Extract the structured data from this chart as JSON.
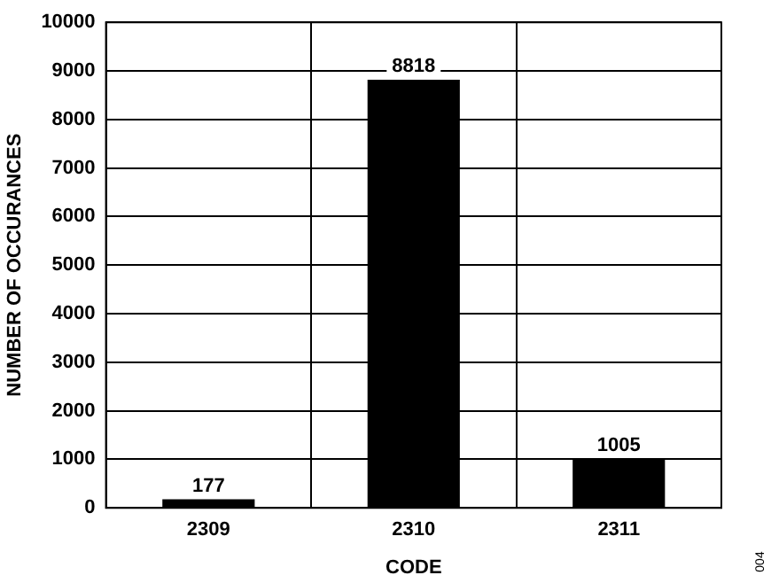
{
  "chart_data": {
    "type": "bar",
    "xlabel": "CODE",
    "ylabel": "NUMBER OF OCCURANCES",
    "categories": [
      "2309",
      "2310",
      "2311"
    ],
    "values": [
      177,
      8818,
      1005
    ],
    "color": "#000000",
    "ylim": [
      0,
      10000
    ],
    "yticks": [
      0,
      1000,
      2000,
      3000,
      4000,
      5000,
      6000,
      7000,
      8000,
      9000,
      10000
    ],
    "grid": true,
    "data_labels": true,
    "annotations": [
      "004"
    ]
  }
}
